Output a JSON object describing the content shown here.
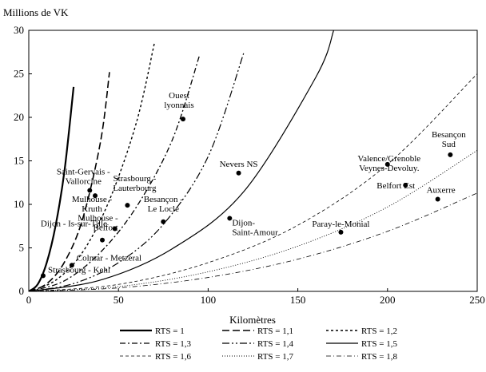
{
  "chart_data": {
    "type": "scatter",
    "ylabel": "Millions de VK",
    "xlabel": "Kilomètres",
    "xlim": [
      0,
      250
    ],
    "ylim": [
      0,
      30
    ],
    "xticks": [
      "0",
      "50",
      "100",
      "150",
      "200",
      "250"
    ],
    "yticks": [
      "0",
      "5",
      "10",
      "15",
      "20",
      "25",
      "30"
    ],
    "grid": false,
    "legend_placement": "bottom",
    "series": [
      {
        "name": "RTS = 1",
        "dash": "solid-thick",
        "x": [
          0,
          5,
          10,
          15,
          20,
          25
        ],
        "y": [
          0,
          0.82,
          3.3,
          7.6,
          14,
          23.5
        ]
      },
      {
        "name": "RTS = 1,1",
        "dash": "long-dash",
        "x": [
          0,
          10,
          20,
          30,
          40,
          45
        ],
        "y": [
          0,
          0.88,
          3.4,
          8.3,
          17.2,
          25.2
        ]
      },
      {
        "name": "RTS = 1,2",
        "dash": "short-dash",
        "x": [
          0,
          15,
          30,
          45,
          60,
          70
        ],
        "y": [
          0,
          1.28,
          4.5,
          10.5,
          19.4,
          28.5
        ]
      },
      {
        "name": "RTS = 1,3",
        "dash": "dash-dot",
        "x": [
          0,
          20,
          40,
          60,
          80,
          95
        ],
        "y": [
          0,
          1.23,
          4.5,
          9.7,
          17.4,
          27
        ]
      },
      {
        "name": "RTS = 1,4",
        "dash": "dash-dot-dot",
        "x": [
          0,
          25,
          50,
          75,
          100,
          120
        ],
        "y": [
          0,
          0.9,
          3.3,
          7.7,
          15.5,
          27.5
        ]
      },
      {
        "name": "RTS = 1,5",
        "dash": "solid",
        "x": [
          0,
          40,
          80,
          120,
          160,
          170
        ],
        "y": [
          0,
          1.3,
          4.9,
          11.5,
          24.6,
          30
        ]
      },
      {
        "name": "RTS = 1,6",
        "dash": "fine-dash",
        "x": [
          0,
          50,
          100,
          150,
          200,
          250
        ],
        "y": [
          0,
          0.8,
          3.3,
          7.6,
          14.6,
          25
        ]
      },
      {
        "name": "RTS = 1,7",
        "dash": "dotted",
        "x": [
          0,
          50,
          100,
          150,
          200,
          250
        ],
        "y": [
          0,
          0.55,
          2.25,
          5.2,
          9.7,
          16.2
        ]
      },
      {
        "name": "RTS = 1,8",
        "dash": "fine-dash-dot",
        "x": [
          0,
          50,
          100,
          150,
          200,
          250
        ],
        "y": [
          0,
          0.4,
          1.6,
          3.7,
          6.9,
          11.3
        ]
      }
    ],
    "points": [
      {
        "label": "Strasbourg - Kehl",
        "x": 8,
        "y": 1.8
      },
      {
        "label": "Colmar - Metzeral",
        "x": 24,
        "y": 3.0
      },
      {
        "label": "Dijon - Is-sur-Tille",
        "x": 41,
        "y": 5.9
      },
      {
        "label": "Mulhouse - Belfort",
        "x": 48,
        "y": 7.2
      },
      {
        "label": "Mulhouse - Kruth",
        "x": 37,
        "y": 11.0
      },
      {
        "label": "Saint-Gervais - Vallorcine",
        "x": 34,
        "y": 11.6
      },
      {
        "label": "Strasbourg - Lauterbourg",
        "x": 55,
        "y": 9.9
      },
      {
        "label": "Besançon - Le Locle",
        "x": 75,
        "y": 8.0
      },
      {
        "label": "Ouest lyonnais",
        "x": 86,
        "y": 19.8
      },
      {
        "label": "Nevers NS",
        "x": 117,
        "y": 13.6
      },
      {
        "label": "Dijon- Saint-Amour",
        "x": 112,
        "y": 8.4
      },
      {
        "label": "Paray-le-Monial",
        "x": 174,
        "y": 6.8
      },
      {
        "label": "Valence/Grenoble Veynes-Devoluy.",
        "x": 200,
        "y": 14.6
      },
      {
        "label": "Belfort Est",
        "x": 210,
        "y": 12.2
      },
      {
        "label": "Besançon Sud",
        "x": 235,
        "y": 15.7
      },
      {
        "label": "Auxerre",
        "x": 228,
        "y": 10.6
      }
    ],
    "point_labels": {
      "Strasbourg - Kehl": [
        "Strasbourg - Kehl"
      ],
      "Colmar - Metzeral": [
        "Colmar -  Metzeral"
      ],
      "Dijon - Is-sur-Tille": [
        "Dijon - Is-sur-Tille"
      ],
      "Mulhouse - Belfort": [
        "Mulhouse -",
        "Belfort"
      ],
      "Mulhouse - Kruth": [
        "Mulhouse -",
        "Kruth"
      ],
      "Saint-Gervais - Vallorcine": [
        "Saint-Gervais -",
        "Vallorcine"
      ],
      "Strasbourg - Lauterbourg": [
        "Strasbourg -",
        "Lauterbourg"
      ],
      "Besançon - Le Locle": [
        "Besançon -",
        "Le Locle"
      ],
      "Ouest lyonnais": [
        "Ouest",
        "lyonnais"
      ],
      "Nevers NS": [
        "Nevers NS"
      ],
      "Dijon- Saint-Amour": [
        "Dijon-",
        "Saint-Amour"
      ],
      "Paray-le-Monial": [
        "Paray-le-Monial"
      ],
      "Valence/Grenoble Veynes-Devoluy.": [
        "Valence/Grenoble",
        "Veynes-Devoluy."
      ],
      "Belfort Est": [
        "Belfort Est"
      ],
      "Besançon Sud": [
        "Besançon",
        "Sud"
      ],
      "Auxerre": [
        "Auxerre"
      ]
    }
  }
}
